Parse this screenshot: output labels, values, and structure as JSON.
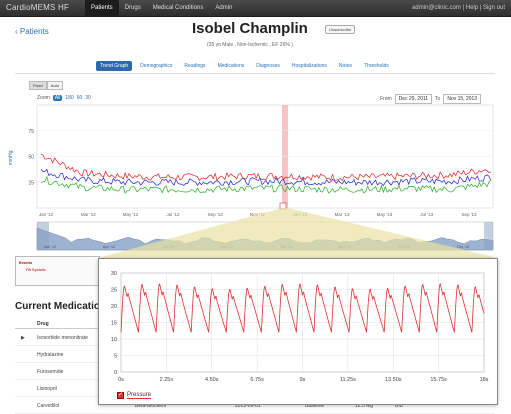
{
  "app": {
    "brand": "CardioMEMS HF",
    "nav": [
      "Patients",
      "Drugs",
      "Medical Conditions",
      "Admin"
    ],
    "user_links": "admin@clinic.com | Help | Sign out"
  },
  "header": {
    "back_label": "Patients",
    "patient_name": "Isobel Champlin",
    "subtitle": "(35 yo Male , Non-Ischemic , EF 26% )",
    "unsubscribe_label": "Unsubscribe"
  },
  "tabs": [
    "Trend Graph",
    "Demographics",
    "Readings",
    "Medications",
    "Diagnoses",
    "Hospitalizations",
    "Notes",
    "Thresholds"
  ],
  "trend": {
    "toggle": [
      "Fixed",
      "Auto"
    ],
    "zoom_label": "Zoom",
    "zoom_options": [
      "All",
      "180",
      "60",
      "30"
    ],
    "from_label": "From",
    "from_date": "Dec 29, 2011",
    "to_label": "To",
    "to_date": "Nov 15, 2013",
    "ylabel": "mmHg",
    "y_ticks": [
      "75",
      "50",
      "25"
    ],
    "x_ticks": [
      "Jan '12",
      "Mar '12",
      "May '12",
      "Jul '12",
      "Sep '12",
      "Nov '12",
      "Jan '13",
      "Mar '13",
      "May '13",
      "Jul '13",
      "Sep '13"
    ],
    "nav_ticks": [
      "Jan '12",
      "Apr '12",
      "Jul '12",
      "Oct '12",
      "Jan '13",
      "Apr '13",
      "Jul '13",
      "Oct '13"
    ],
    "events_title": "Events",
    "events_item": "PA Systolic"
  },
  "medications": {
    "heading": "Current Medications",
    "col_drug": "Drug",
    "rows": [
      {
        "drug": "Isosorbide mononitrate",
        "klass": "",
        "date": "",
        "status": "",
        "dose": "",
        "freq": ""
      },
      {
        "drug": "Hydralazine",
        "klass": "",
        "date": "",
        "status": "",
        "dose": "",
        "freq": ""
      },
      {
        "drug": "Furosemide",
        "klass": "",
        "date": "",
        "status": "",
        "dose": "",
        "freq": ""
      },
      {
        "drug": "Lisinopril",
        "klass": "",
        "date": "",
        "status": "",
        "dose": "",
        "freq": ""
      },
      {
        "drug": "Carvedilol",
        "klass": "Beta-Blockers",
        "date": "2013-09-01",
        "status": "Baseline",
        "dose": "12.5 Mg",
        "freq": "BID"
      }
    ]
  },
  "waveform": {
    "legend": "Pressure",
    "color": "#e03030"
  },
  "colors": {
    "systolic": "#e02020",
    "mean": "#2020d0",
    "diastolic": "#20b020",
    "accent": "#2c6aab"
  },
  "chart_data": [
    {
      "type": "line",
      "ylabel": "mmHg",
      "x": [
        "Jan '12",
        "Mar '12",
        "May '12",
        "Jul '12",
        "Sep '12",
        "Nov '12",
        "Jan '13",
        "Mar '13",
        "May '13",
        "Jul '13",
        "Sep '13",
        "Nov '13"
      ],
      "series": [
        {
          "name": "PA Systolic",
          "values": [
            52,
            34,
            31,
            30,
            30,
            31,
            31,
            30,
            30,
            31,
            32,
            38
          ]
        },
        {
          "name": "",
          "values": [
            36,
            27,
            25,
            25,
            25,
            26,
            26,
            25,
            25,
            26,
            26,
            30
          ]
        },
        {
          "name": "",
          "values": [
            28,
            20,
            18,
            18,
            18,
            19,
            19,
            18,
            18,
            19,
            18,
            24
          ]
        }
      ],
      "ylim": [
        0,
        100
      ]
    },
    {
      "type": "line",
      "xlabel": "",
      "x_ticks": [
        "0s",
        "2.25s",
        "4.50s",
        "6.75s",
        "9s",
        "11.25s",
        "13.50s",
        "15.75s",
        "18s"
      ],
      "y_ticks": [
        0,
        5,
        10,
        15,
        20,
        25,
        30
      ],
      "ylim": [
        0,
        30
      ],
      "xlim": [
        0,
        18
      ],
      "series": [
        {
          "name": "Pressure",
          "period_s": 0.87,
          "min": 12,
          "max": 26
        }
      ]
    }
  ]
}
